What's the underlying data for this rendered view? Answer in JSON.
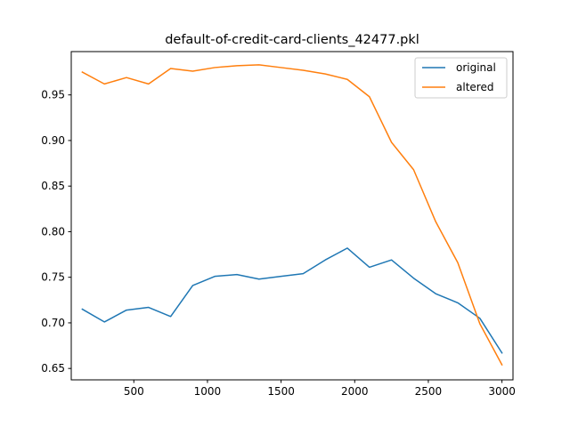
{
  "chart_data": {
    "type": "line",
    "title": "default-of-credit-card-clients_42477.pkl",
    "xlabel": "",
    "ylabel": "",
    "xlim": [
      75,
      3075
    ],
    "ylim": [
      0.6375,
      0.9975
    ],
    "xticks": [
      500,
      1000,
      1500,
      2000,
      2500,
      3000
    ],
    "yticks": [
      0.65,
      0.7,
      0.75,
      0.8,
      0.85,
      0.9,
      0.95
    ],
    "xtick_labels": [
      "500",
      "1000",
      "1500",
      "2000",
      "2500",
      "3000"
    ],
    "ytick_labels": [
      "0.65",
      "0.70",
      "0.75",
      "0.80",
      "0.85",
      "0.90",
      "0.95"
    ],
    "grid": false,
    "legend_position": "top-right",
    "x": [
      150,
      300,
      450,
      600,
      750,
      900,
      1050,
      1200,
      1350,
      1500,
      1650,
      1800,
      1950,
      2100,
      2250,
      2400,
      2550,
      2700,
      2850,
      3000
    ],
    "series": [
      {
        "name": "original",
        "color": "#1f77b4",
        "values": [
          0.715,
          0.701,
          0.714,
          0.717,
          0.707,
          0.741,
          0.751,
          0.753,
          0.748,
          0.751,
          0.754,
          0.769,
          0.782,
          0.761,
          0.769,
          0.749,
          0.732,
          0.722,
          0.705,
          0.667
        ]
      },
      {
        "name": "altered",
        "color": "#ff7f0e",
        "values": [
          0.975,
          0.962,
          0.969,
          0.962,
          0.979,
          0.976,
          0.98,
          0.982,
          0.983,
          0.98,
          0.977,
          0.973,
          0.967,
          0.948,
          0.898,
          0.868,
          0.811,
          0.766,
          0.699,
          0.654
        ]
      }
    ]
  }
}
